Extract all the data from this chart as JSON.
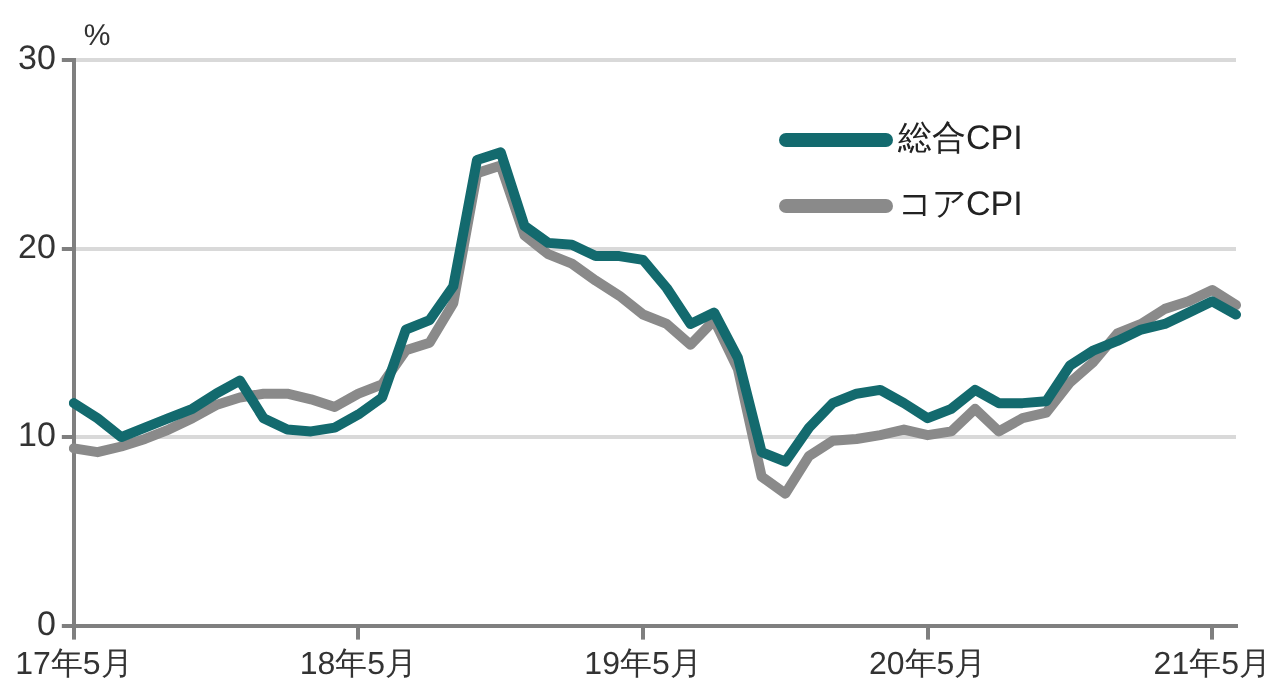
{
  "chart_data": {
    "type": "line",
    "ylabel": "%",
    "categories": [
      "17年5月",
      null,
      null,
      null,
      null,
      null,
      null,
      null,
      null,
      null,
      null,
      null,
      "18年5月",
      null,
      null,
      null,
      null,
      null,
      null,
      null,
      null,
      null,
      null,
      null,
      "19年5月",
      null,
      null,
      null,
      null,
      null,
      null,
      null,
      null,
      null,
      null,
      null,
      "20年5月",
      null,
      null,
      null,
      null,
      null,
      null,
      null,
      null,
      null,
      null,
      null,
      "21年5月",
      null
    ],
    "series": [
      {
        "name": "総合CPI",
        "color": "#136a6e",
        "values": [
          11.8,
          11.0,
          10.0,
          10.5,
          11.0,
          11.5,
          12.3,
          13.0,
          11.0,
          10.4,
          10.3,
          10.5,
          11.2,
          12.1,
          15.7,
          16.2,
          18.0,
          24.7,
          25.1,
          21.2,
          20.3,
          20.2,
          19.6,
          19.6,
          19.4,
          17.9,
          16.0,
          16.6,
          14.2,
          9.2,
          8.7,
          10.5,
          11.8,
          12.3,
          12.5,
          11.8,
          11.0,
          11.5,
          12.5,
          11.8,
          11.8,
          11.9,
          13.8,
          14.6,
          15.1,
          15.7,
          16.0,
          16.6,
          17.2,
          16.5
        ]
      },
      {
        "name": "コアCPI",
        "color": "#8a8a8a",
        "values": [
          9.4,
          9.2,
          9.5,
          9.9,
          10.4,
          11.0,
          11.7,
          12.1,
          12.3,
          12.3,
          12.0,
          11.6,
          12.3,
          12.8,
          14.6,
          15.0,
          17.1,
          24.0,
          24.4,
          20.7,
          19.7,
          19.2,
          18.3,
          17.5,
          16.5,
          16.0,
          14.9,
          16.2,
          13.6,
          7.9,
          7.0,
          9.0,
          9.8,
          9.9,
          10.1,
          10.4,
          10.1,
          10.3,
          11.5,
          10.3,
          11.0,
          11.3,
          12.9,
          14.0,
          15.5,
          16.0,
          16.8,
          17.2,
          17.8,
          17.0
        ]
      }
    ],
    "ylim": [
      0,
      30
    ],
    "yticks": [
      0,
      10,
      20,
      30
    ],
    "grid": "y",
    "legend": "top right",
    "marker": "none",
    "line_style": "solid"
  }
}
